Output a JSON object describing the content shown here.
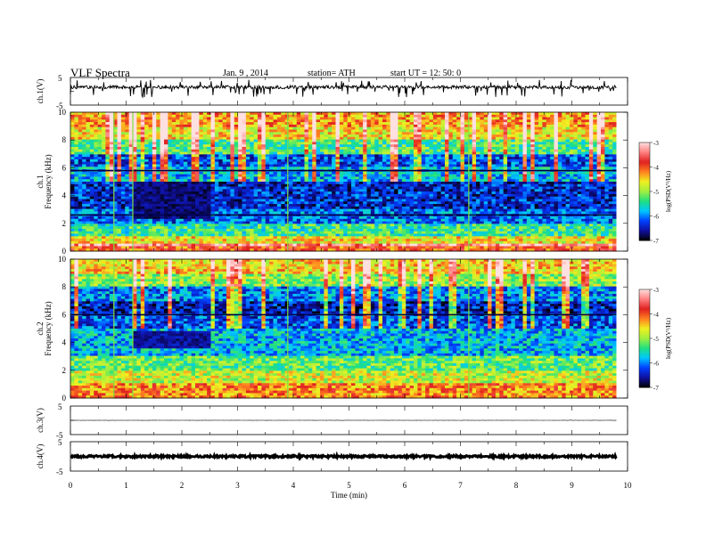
{
  "header": {
    "title": "VLF Spectra",
    "date": "Jan. 9 , 2014",
    "station": "station= ATH",
    "start": "start UT = 12: 50: 0"
  },
  "chart_data": [
    {
      "type": "line",
      "ylabel": "ch.1(V)",
      "ylim": [
        -5,
        5
      ],
      "y_ticks": [
        "5",
        "-5"
      ],
      "baseline": 1.5,
      "noise_amplitude": 0.6,
      "trace": "noisy waveform around +1.5 V with frequent downward spikes"
    },
    {
      "type": "heatmap",
      "ylabel": [
        "ch.1",
        "Frequency (kHz)"
      ],
      "ylim": [
        0,
        10
      ],
      "y_ticks": [
        "0",
        "2",
        "4",
        "6",
        "8",
        "10"
      ],
      "colorbar": {
        "label": "log(PSD(V²/Hz)",
        "range": [
          -7,
          -3
        ],
        "ticks": [
          "-3",
          "-4",
          "-5",
          "-6",
          "-7"
        ],
        "colormap": [
          "#000000",
          "#1010a0",
          "#0040ff",
          "#00c8ff",
          "#20e080",
          "#a0f040",
          "#f0f020",
          "#ff8020",
          "#e02020",
          "#ff8080",
          "#ffe0e0"
        ]
      },
      "bands": [
        {
          "freq_khz": [
            0.0,
            0.3
          ],
          "log_psd": -4.0
        },
        {
          "freq_khz": [
            0.3,
            0.6
          ],
          "log_psd": -3.3
        },
        {
          "freq_khz": [
            0.6,
            1.0
          ],
          "log_psd": -4.6
        },
        {
          "freq_khz": [
            1.0,
            2.0
          ],
          "log_psd": -5.4
        },
        {
          "freq_khz": [
            2.0,
            3.0
          ],
          "log_psd": -6.1
        },
        {
          "freq_khz": [
            3.0,
            5.0
          ],
          "log_psd": -6.4
        },
        {
          "freq_khz": [
            5.0,
            6.0
          ],
          "log_psd": -5.8
        },
        {
          "freq_khz": [
            6.0,
            7.0
          ],
          "log_psd": -6.2
        },
        {
          "freq_khz": [
            7.0,
            8.0
          ],
          "log_psd": -5.3
        },
        {
          "freq_khz": [
            8.0,
            9.0
          ],
          "log_psd": -4.6
        },
        {
          "freq_khz": [
            9.0,
            10.0
          ],
          "log_psd": -4.3
        }
      ],
      "quiet_region": {
        "time_min": [
          1.15,
          2.5
        ],
        "freq_khz": [
          2.4,
          5.0
        ],
        "log_psd": -6.9
      },
      "dark_bands_khz": [
        2.6,
        5.8
      ]
    },
    {
      "type": "heatmap",
      "ylabel": [
        "ch.2",
        "Frequency (kHz)"
      ],
      "ylim": [
        0,
        10
      ],
      "y_ticks": [
        "0",
        "2",
        "4",
        "6",
        "8",
        "10"
      ],
      "colorbar": {
        "label": "log(PSD(V²/Hz)",
        "range": [
          -7,
          -3
        ],
        "ticks": [
          "-3",
          "-4",
          "-5",
          "-6",
          "-7"
        ]
      },
      "bands": [
        {
          "freq_khz": [
            0.0,
            0.3
          ],
          "log_psd": -4.2
        },
        {
          "freq_khz": [
            0.3,
            1.0
          ],
          "log_psd": -4.2
        },
        {
          "freq_khz": [
            1.0,
            2.0
          ],
          "log_psd": -4.8
        },
        {
          "freq_khz": [
            2.0,
            3.0
          ],
          "log_psd": -5.2
        },
        {
          "freq_khz": [
            3.0,
            5.0
          ],
          "log_psd": -5.8
        },
        {
          "freq_khz": [
            5.0,
            6.0
          ],
          "log_psd": -6.2
        },
        {
          "freq_khz": [
            6.0,
            7.0
          ],
          "log_psd": -6.5
        },
        {
          "freq_khz": [
            7.0,
            8.0
          ],
          "log_psd": -6.0
        },
        {
          "freq_khz": [
            8.0,
            9.0
          ],
          "log_psd": -5.0
        },
        {
          "freq_khz": [
            9.0,
            10.0
          ],
          "log_psd": -4.5
        }
      ],
      "quiet_region": {
        "time_min": [
          1.15,
          2.5
        ],
        "freq_khz": [
          3.5,
          4.8
        ],
        "log_psd": -6.8
      },
      "dark_bands_khz": [
        6.0
      ]
    },
    {
      "type": "line",
      "ylabel": "ch.3(V)",
      "ylim": [
        -5,
        5
      ],
      "y_ticks": [
        "5",
        "-5"
      ],
      "baseline": 0.0,
      "noise_amplitude": 0.05,
      "trace": "flat line near 0 V"
    },
    {
      "type": "line",
      "ylabel": "ch.4(V)",
      "ylim": [
        -5,
        5
      ],
      "y_ticks": [
        "5",
        "-5"
      ],
      "baseline": 0.0,
      "noise_amplitude": 0.35,
      "trace": "thick band near 0 V"
    }
  ],
  "time_axis": {
    "xlabel": "Time (min)",
    "xlim": [
      0,
      10
    ],
    "ticks": [
      "0",
      "1",
      "2",
      "3",
      "4",
      "5",
      "6",
      "7",
      "8",
      "9",
      "10"
    ],
    "data_end_min": 9.8,
    "strong_vertical_lines_min": [
      0.78,
      1.12,
      3.9,
      7.15
    ]
  }
}
